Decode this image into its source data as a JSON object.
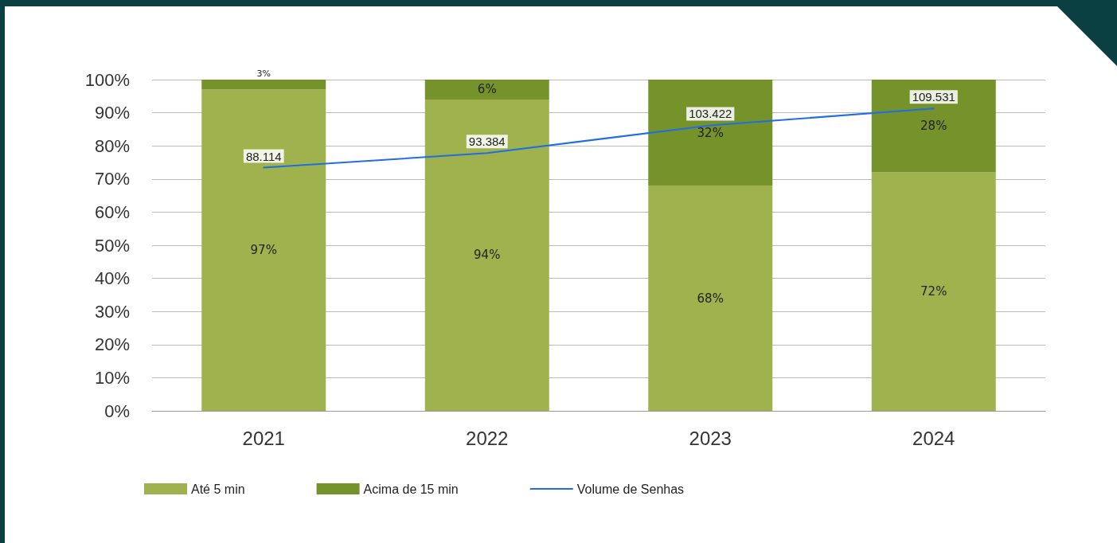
{
  "chart_data": {
    "type": "bar",
    "stacked": true,
    "categories": [
      "2021",
      "2022",
      "2023",
      "2024"
    ],
    "series": [
      {
        "name": "Até 5 min",
        "color": "#9fb24d",
        "values": [
          97,
          94,
          68,
          72
        ],
        "value_labels": [
          "97%",
          "94%",
          "68%",
          "72%"
        ]
      },
      {
        "name": "Acima de 15 min",
        "color": "#76922b",
        "values": [
          3,
          6,
          32,
          28
        ],
        "value_labels": [
          "3%",
          "6%",
          "32%",
          "28%"
        ]
      },
      {
        "name": "Volume de Senhas",
        "type": "line",
        "axis": "y2",
        "color": "#1f6fe0",
        "values": [
          88114,
          93384,
          103422,
          109531
        ],
        "value_labels": [
          "88.114",
          "93.384",
          "103.422",
          "109.531"
        ]
      }
    ],
    "ylim": [
      0,
      100
    ],
    "yticks": [
      {
        "value": 0,
        "label": "0%"
      },
      {
        "value": 10,
        "label": "10%"
      },
      {
        "value": 20,
        "label": "20%"
      },
      {
        "value": 30,
        "label": "30%"
      },
      {
        "value": 40,
        "label": "40%"
      },
      {
        "value": 50,
        "label": "50%"
      },
      {
        "value": 60,
        "label": "60%"
      },
      {
        "value": 70,
        "label": "70%"
      },
      {
        "value": 80,
        "label": "80%"
      },
      {
        "value": 90,
        "label": "90%"
      },
      {
        "value": 100,
        "label": "100%"
      }
    ],
    "grid": "y",
    "legend": "bottom",
    "marker": "none",
    "line_style": "solid"
  }
}
